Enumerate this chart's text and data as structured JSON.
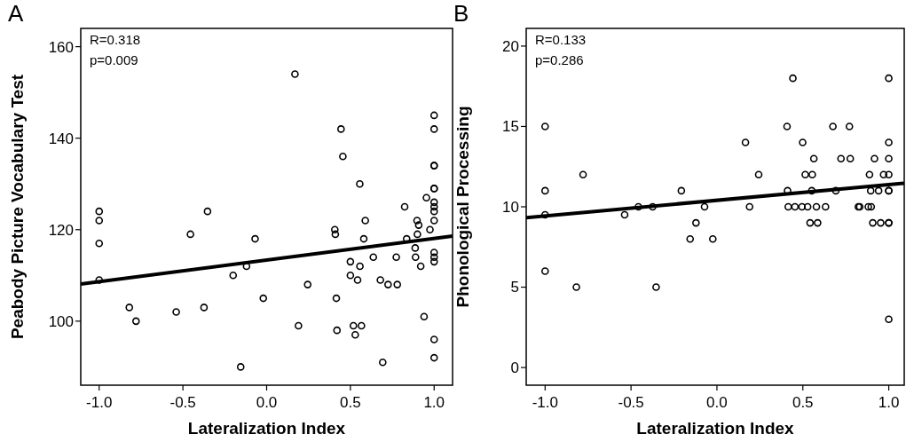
{
  "chart_data": [
    {
      "type": "scatter",
      "title": "A",
      "xlabel": "Lateralization Index",
      "ylabel": "Peabody Picture Vocabulary Test",
      "xlim": [
        -1.11,
        1.11
      ],
      "xticks": [
        {
          "value": -1,
          "label": "-1.0"
        },
        {
          "value": -0.5,
          "label": "-0.5"
        },
        {
          "value": 0,
          "label": "0.0"
        },
        {
          "value": 0.5,
          "label": "0.5"
        },
        {
          "value": 1,
          "label": "1.0"
        }
      ],
      "ylim": [
        86,
        164
      ],
      "yticks": [
        100,
        120,
        140,
        160
      ],
      "annotations": [
        "R=0.318",
        "p=0.009"
      ],
      "series": [
        {
          "marker": "circle",
          "color": "#000000",
          "x": [
            -1,
            -1,
            -1,
            -1,
            -0.82,
            -0.78,
            -0.54,
            -0.455,
            -0.374,
            -0.353,
            -0.2,
            0.169,
            -0.069,
            -0.12,
            -0.02,
            0.245,
            0.19,
            -0.155,
            0.444,
            0.455,
            0.556,
            0.407,
            0.41,
            0.589,
            0.58,
            0.5,
            0.557,
            0.637,
            0.5,
            0.543,
            0.416,
            0.42,
            0.518,
            0.566,
            0.529,
            0.679,
            0.725,
            0.78,
            0.774,
            0.693,
            0.824,
            0.836,
            0.898,
            0.908,
            0.9,
            0.887,
            0.889,
            0.92,
            0.954,
            0.975,
            0.94,
            1,
            1,
            1,
            1,
            1,
            1,
            1,
            1,
            1,
            1,
            1,
            1,
            1,
            1,
            1
          ],
          "values": [
            124,
            122,
            117,
            109,
            103,
            100,
            102,
            119,
            103,
            124,
            110,
            154,
            118,
            112,
            105,
            108,
            99,
            90,
            142,
            136,
            130,
            120,
            119,
            122,
            118,
            113,
            112,
            114,
            110,
            109,
            105,
            98,
            99,
            99,
            97,
            109,
            108,
            108,
            114,
            91,
            125,
            118,
            122,
            121,
            119,
            116,
            114,
            112,
            127,
            120,
            101,
            145,
            142,
            134,
            134,
            129,
            129,
            126,
            125,
            124,
            122,
            115,
            114,
            113,
            96,
            92
          ]
        },
        {
          "type": "line",
          "marker": "none",
          "color": "#000000",
          "x": [
            -1.11,
            1.11
          ],
          "values": [
            108.1,
            118.6
          ]
        }
      ]
    },
    {
      "type": "scatter",
      "title": "B",
      "xlabel": "Lateralization Index",
      "ylabel": "Phonological Processing",
      "xlim": [
        -1.11,
        1.09
      ],
      "xticks": [
        {
          "value": -1,
          "label": "-1.0"
        },
        {
          "value": -0.5,
          "label": "-0.5"
        },
        {
          "value": 0,
          "label": "0.0"
        },
        {
          "value": 0.5,
          "label": "0.5"
        },
        {
          "value": 1,
          "label": "1.0"
        }
      ],
      "ylim": [
        -1.1,
        21.1
      ],
      "yticks": [
        0,
        5,
        10,
        15,
        20
      ],
      "annotations": [
        "R=0.133",
        "p=0.286"
      ],
      "series": [
        {
          "marker": "circle",
          "color": "#000000",
          "x": [
            -1,
            -1,
            -1,
            -1,
            -0.818,
            -0.779,
            -0.537,
            -0.457,
            -0.374,
            -0.354,
            -0.207,
            -0.072,
            -0.122,
            -0.156,
            -0.024,
            0.166,
            0.19,
            0.243,
            0.442,
            0.408,
            0.411,
            0.415,
            0.454,
            0.495,
            0.528,
            0.579,
            0.632,
            0.499,
            0.564,
            0.514,
            0.555,
            0.552,
            0.542,
            0.586,
            0.675,
            0.771,
            0.722,
            0.776,
            0.692,
            0.823,
            0.831,
            0.881,
            0.898,
            0.888,
            0.917,
            0.895,
            0.941,
            0.907,
            0.953,
            1,
            1,
            1,
            0.97,
            1,
            1,
            1,
            1,
            1,
            1
          ],
          "values": [
            15,
            11,
            9.5,
            6,
            5,
            12,
            9.5,
            10,
            10,
            5,
            11,
            10,
            9,
            8,
            8,
            14,
            10,
            12,
            18,
            15,
            11,
            10,
            10,
            10,
            10,
            10,
            10,
            14,
            13,
            12,
            12,
            11,
            9,
            9,
            15,
            15,
            13,
            13,
            11,
            10,
            10,
            10,
            10,
            12,
            13,
            11,
            11,
            9,
            9,
            18,
            14,
            13,
            12,
            12,
            11,
            11,
            9,
            9,
            3
          ]
        },
        {
          "type": "line",
          "marker": "none",
          "color": "#000000",
          "x": [
            -1.11,
            1.09
          ],
          "values": [
            9.32,
            11.47
          ]
        }
      ]
    }
  ]
}
